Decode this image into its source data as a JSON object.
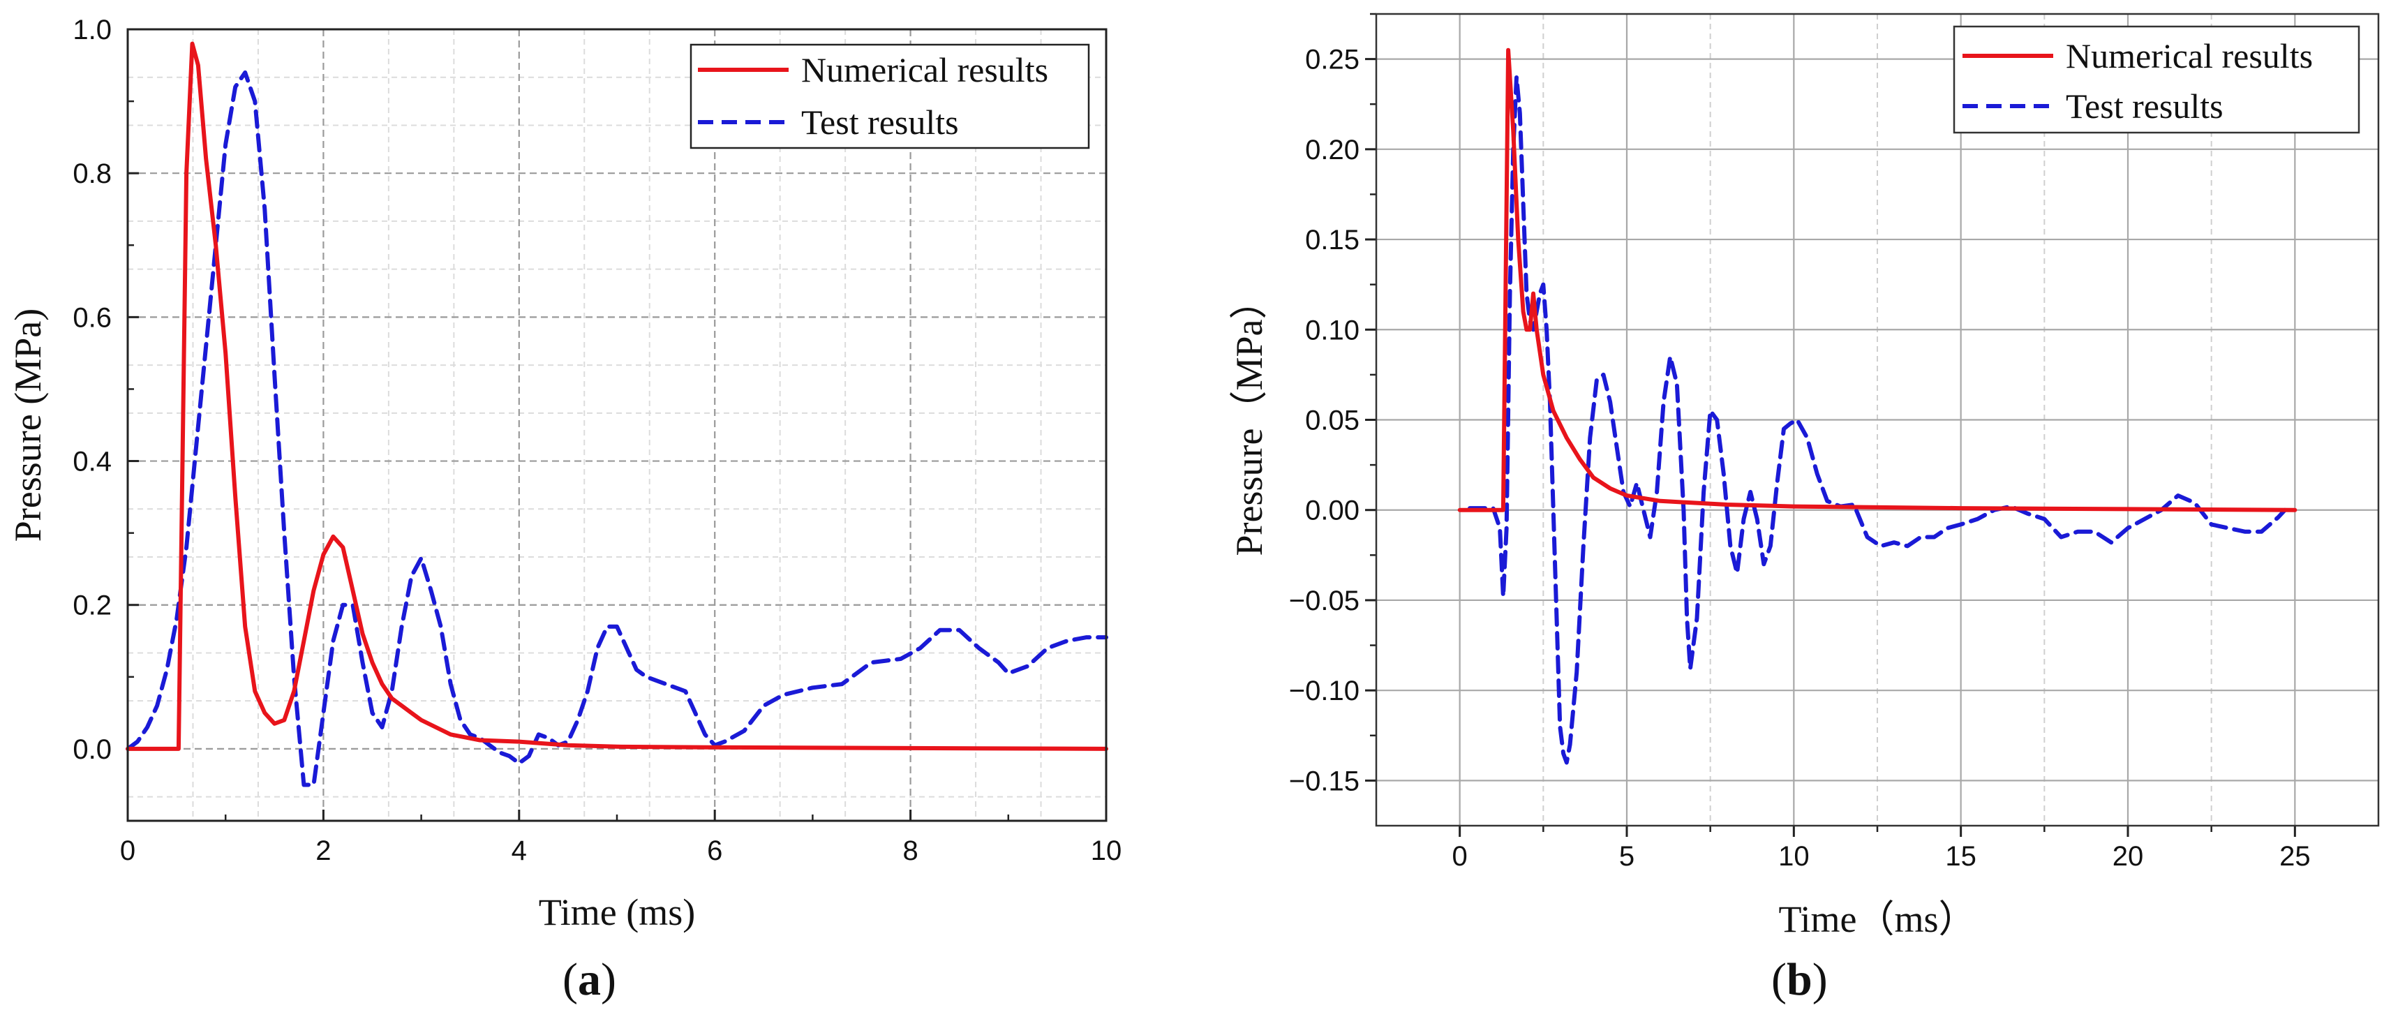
{
  "chart_data": [
    {
      "type": "line",
      "panel_label": "(a)",
      "panel_letter": "a",
      "xlabel": "Time (ms)",
      "ylabel": "Pressure (MPa)",
      "xlim": [
        0,
        10
      ],
      "ylim": [
        -0.1,
        1.0
      ],
      "xticks": [
        0,
        2,
        4,
        6,
        8,
        10
      ],
      "yticks": [
        0.0,
        0.2,
        0.4,
        0.6,
        0.8,
        1.0
      ],
      "xtick_labels": [
        "0",
        "2",
        "4",
        "6",
        "8",
        "10"
      ],
      "ytick_labels": [
        "0.0",
        "0.2",
        "0.4",
        "0.6",
        "0.8",
        "1.0"
      ],
      "grid": true,
      "legend_position": "top-right",
      "series": [
        {
          "name": "Numerical results",
          "color": "#e8141b",
          "style": "solid",
          "points": [
            [
              0,
              0
            ],
            [
              0.52,
              0
            ],
            [
              0.55,
              0.3
            ],
            [
              0.6,
              0.8
            ],
            [
              0.66,
              0.98
            ],
            [
              0.72,
              0.95
            ],
            [
              0.8,
              0.82
            ],
            [
              0.9,
              0.7
            ],
            [
              1.0,
              0.55
            ],
            [
              1.1,
              0.35
            ],
            [
              1.2,
              0.17
            ],
            [
              1.3,
              0.08
            ],
            [
              1.4,
              0.05
            ],
            [
              1.5,
              0.035
            ],
            [
              1.6,
              0.04
            ],
            [
              1.7,
              0.08
            ],
            [
              1.8,
              0.15
            ],
            [
              1.9,
              0.22
            ],
            [
              2.0,
              0.27
            ],
            [
              2.1,
              0.295
            ],
            [
              2.2,
              0.28
            ],
            [
              2.3,
              0.22
            ],
            [
              2.4,
              0.16
            ],
            [
              2.5,
              0.12
            ],
            [
              2.6,
              0.09
            ],
            [
              2.7,
              0.07
            ],
            [
              2.8,
              0.06
            ],
            [
              2.9,
              0.05
            ],
            [
              3.0,
              0.04
            ],
            [
              3.3,
              0.02
            ],
            [
              3.6,
              0.012
            ],
            [
              4.0,
              0.01
            ],
            [
              4.5,
              0.005
            ],
            [
              5.0,
              0.003
            ],
            [
              6.0,
              0.002
            ],
            [
              8.0,
              0.001
            ],
            [
              10.0,
              0.0
            ]
          ]
        },
        {
          "name": "Test results",
          "color": "#1a1ad6",
          "style": "dashed",
          "points": [
            [
              0,
              0
            ],
            [
              0.1,
              0.01
            ],
            [
              0.2,
              0.03
            ],
            [
              0.3,
              0.06
            ],
            [
              0.4,
              0.11
            ],
            [
              0.5,
              0.18
            ],
            [
              0.6,
              0.28
            ],
            [
              0.7,
              0.42
            ],
            [
              0.8,
              0.56
            ],
            [
              0.9,
              0.7
            ],
            [
              1.0,
              0.84
            ],
            [
              1.1,
              0.92
            ],
            [
              1.2,
              0.94
            ],
            [
              1.3,
              0.9
            ],
            [
              1.4,
              0.75
            ],
            [
              1.5,
              0.52
            ],
            [
              1.6,
              0.3
            ],
            [
              1.7,
              0.1
            ],
            [
              1.8,
              -0.05
            ],
            [
              1.9,
              -0.05
            ],
            [
              2.0,
              0.05
            ],
            [
              2.1,
              0.15
            ],
            [
              2.2,
              0.2
            ],
            [
              2.3,
              0.2
            ],
            [
              2.4,
              0.12
            ],
            [
              2.5,
              0.05
            ],
            [
              2.6,
              0.03
            ],
            [
              2.7,
              0.08
            ],
            [
              2.8,
              0.17
            ],
            [
              2.9,
              0.24
            ],
            [
              3.0,
              0.265
            ],
            [
              3.1,
              0.22
            ],
            [
              3.2,
              0.17
            ],
            [
              3.3,
              0.09
            ],
            [
              3.4,
              0.04
            ],
            [
              3.5,
              0.02
            ],
            [
              3.6,
              0.015
            ],
            [
              3.7,
              0.005
            ],
            [
              3.8,
              -0.005
            ],
            [
              3.9,
              -0.01
            ],
            [
              4.0,
              -0.02
            ],
            [
              4.1,
              -0.01
            ],
            [
              4.2,
              0.02
            ],
            [
              4.3,
              0.015
            ],
            [
              4.4,
              0.005
            ],
            [
              4.5,
              0.01
            ],
            [
              4.6,
              0.04
            ],
            [
              4.7,
              0.08
            ],
            [
              4.8,
              0.14
            ],
            [
              4.9,
              0.17
            ],
            [
              5.0,
              0.17
            ],
            [
              5.1,
              0.14
            ],
            [
              5.2,
              0.11
            ],
            [
              5.3,
              0.1
            ],
            [
              5.5,
              0.09
            ],
            [
              5.7,
              0.08
            ],
            [
              5.8,
              0.05
            ],
            [
              5.9,
              0.02
            ],
            [
              6.0,
              0.005
            ],
            [
              6.1,
              0.01
            ],
            [
              6.3,
              0.025
            ],
            [
              6.5,
              0.06
            ],
            [
              6.7,
              0.075
            ],
            [
              7.0,
              0.085
            ],
            [
              7.3,
              0.09
            ],
            [
              7.6,
              0.12
            ],
            [
              7.9,
              0.125
            ],
            [
              8.1,
              0.14
            ],
            [
              8.3,
              0.165
            ],
            [
              8.5,
              0.165
            ],
            [
              8.7,
              0.14
            ],
            [
              8.9,
              0.12
            ],
            [
              9.0,
              0.105
            ],
            [
              9.2,
              0.115
            ],
            [
              9.4,
              0.14
            ],
            [
              9.6,
              0.15
            ],
            [
              9.8,
              0.155
            ],
            [
              10.0,
              0.155
            ]
          ]
        }
      ]
    },
    {
      "type": "line",
      "panel_label": "(b)",
      "panel_letter": "b",
      "xlabel": "Time（ms）",
      "ylabel": "Pressure（MPa）",
      "xlim": [
        -2.5,
        27.5
      ],
      "ylim": [
        -0.175,
        0.275
      ],
      "xticks": [
        0,
        5,
        10,
        15,
        20,
        25
      ],
      "yticks": [
        -0.15,
        -0.1,
        -0.05,
        0.0,
        0.05,
        0.1,
        0.15,
        0.2,
        0.25
      ],
      "xtick_labels": [
        "0",
        "5",
        "10",
        "15",
        "20",
        "25"
      ],
      "ytick_labels": [
        "−0.15",
        "−0.10",
        "−0.05",
        "0.00",
        "0.05",
        "0.10",
        "0.15",
        "0.20",
        "0.25"
      ],
      "grid": true,
      "legend_position": "top-right",
      "series": [
        {
          "name": "Numerical results",
          "color": "#e8141b",
          "style": "solid",
          "points": [
            [
              0,
              0
            ],
            [
              1.3,
              0
            ],
            [
              1.45,
              0.255
            ],
            [
              1.6,
              0.21
            ],
            [
              1.75,
              0.15
            ],
            [
              1.9,
              0.11
            ],
            [
              2.0,
              0.1
            ],
            [
              2.1,
              0.1
            ],
            [
              2.2,
              0.12
            ],
            [
              2.3,
              0.1
            ],
            [
              2.5,
              0.075
            ],
            [
              2.8,
              0.055
            ],
            [
              3.2,
              0.04
            ],
            [
              3.6,
              0.028
            ],
            [
              4.0,
              0.018
            ],
            [
              4.5,
              0.012
            ],
            [
              5.0,
              0.008
            ],
            [
              6.0,
              0.005
            ],
            [
              7.0,
              0.004
            ],
            [
              8.0,
              0.003
            ],
            [
              10.0,
              0.002
            ],
            [
              15.0,
              0.001
            ],
            [
              25.0,
              0.0
            ]
          ]
        },
        {
          "name": "Test results",
          "color": "#1a1ad6",
          "style": "dashed",
          "points": [
            [
              0.3,
              0.001
            ],
            [
              1.0,
              0.001
            ],
            [
              1.2,
              -0.01
            ],
            [
              1.3,
              -0.048
            ],
            [
              1.4,
              -0.01
            ],
            [
              1.5,
              0.12
            ],
            [
              1.6,
              0.2
            ],
            [
              1.7,
              0.24
            ],
            [
              1.8,
              0.22
            ],
            [
              1.9,
              0.17
            ],
            [
              2.0,
              0.12
            ],
            [
              2.1,
              0.105
            ],
            [
              2.2,
              0.1
            ],
            [
              2.3,
              0.11
            ],
            [
              2.4,
              0.12
            ],
            [
              2.5,
              0.125
            ],
            [
              2.6,
              0.1
            ],
            [
              2.7,
              0.06
            ],
            [
              2.8,
              0.0
            ],
            [
              2.9,
              -0.06
            ],
            [
              3.0,
              -0.12
            ],
            [
              3.1,
              -0.135
            ],
            [
              3.2,
              -0.14
            ],
            [
              3.3,
              -0.13
            ],
            [
              3.5,
              -0.09
            ],
            [
              3.7,
              -0.02
            ],
            [
              3.9,
              0.04
            ],
            [
              4.1,
              0.072
            ],
            [
              4.3,
              0.075
            ],
            [
              4.5,
              0.06
            ],
            [
              4.7,
              0.035
            ],
            [
              4.9,
              0.01
            ],
            [
              5.1,
              0.002
            ],
            [
              5.3,
              0.015
            ],
            [
              5.5,
              0.0
            ],
            [
              5.7,
              -0.015
            ],
            [
              5.9,
              0.01
            ],
            [
              6.1,
              0.06
            ],
            [
              6.3,
              0.085
            ],
            [
              6.5,
              0.07
            ],
            [
              6.7,
              0.0
            ],
            [
              6.8,
              -0.06
            ],
            [
              6.9,
              -0.088
            ],
            [
              7.1,
              -0.06
            ],
            [
              7.3,
              0.01
            ],
            [
              7.5,
              0.055
            ],
            [
              7.7,
              0.05
            ],
            [
              7.9,
              0.02
            ],
            [
              8.1,
              -0.02
            ],
            [
              8.3,
              -0.035
            ],
            [
              8.5,
              -0.005
            ],
            [
              8.7,
              0.01
            ],
            [
              8.9,
              -0.005
            ],
            [
              9.1,
              -0.03
            ],
            [
              9.3,
              -0.02
            ],
            [
              9.5,
              0.015
            ],
            [
              9.7,
              0.045
            ],
            [
              9.9,
              0.048
            ],
            [
              10.1,
              0.05
            ],
            [
              10.4,
              0.04
            ],
            [
              10.7,
              0.02
            ],
            [
              11.0,
              0.005
            ],
            [
              11.4,
              0.002
            ],
            [
              11.8,
              0.003
            ],
            [
              12.2,
              -0.015
            ],
            [
              12.6,
              -0.02
            ],
            [
              13.0,
              -0.018
            ],
            [
              13.4,
              -0.02
            ],
            [
              13.8,
              -0.015
            ],
            [
              14.2,
              -0.015
            ],
            [
              14.6,
              -0.01
            ],
            [
              15.0,
              -0.008
            ],
            [
              15.5,
              -0.005
            ],
            [
              16.0,
              0.0
            ],
            [
              16.5,
              0.002
            ],
            [
              17.0,
              -0.002
            ],
            [
              17.5,
              -0.005
            ],
            [
              18.0,
              -0.015
            ],
            [
              18.5,
              -0.012
            ],
            [
              19.0,
              -0.012
            ],
            [
              19.5,
              -0.018
            ],
            [
              20.0,
              -0.01
            ],
            [
              20.5,
              -0.005
            ],
            [
              21.0,
              0.0
            ],
            [
              21.5,
              0.008
            ],
            [
              22.0,
              0.004
            ],
            [
              22.5,
              -0.008
            ],
            [
              23.0,
              -0.01
            ],
            [
              23.5,
              -0.012
            ],
            [
              24.0,
              -0.012
            ],
            [
              24.5,
              -0.004
            ],
            [
              24.7,
              0.0
            ]
          ]
        }
      ]
    }
  ]
}
